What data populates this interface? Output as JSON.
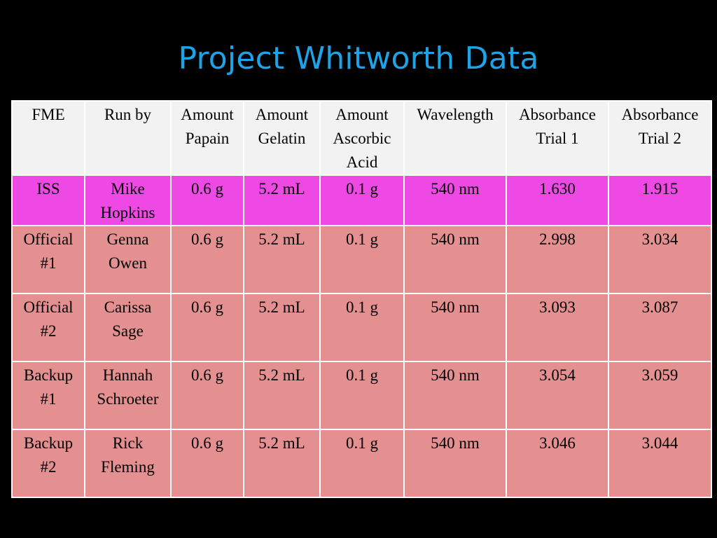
{
  "slide": {
    "title": "Project Whitworth Data"
  },
  "table": {
    "columns": [
      "FME",
      "Run by",
      "Amount Papain",
      "Amount Gelatin",
      "Amount Ascorbic Acid",
      "Wavelength",
      "Absorbance Trial 1",
      "Absorbance Trial 2"
    ],
    "rows": [
      [
        "ISS",
        "Mike Hopkins",
        "0.6 g",
        "5.2 mL",
        "0.1 g",
        "540 nm",
        "1.630",
        "1.915"
      ],
      [
        "Official #1",
        "Genna Owen",
        "0.6 g",
        "5.2 mL",
        "0.1 g",
        "540 nm",
        "2.998",
        "3.034"
      ],
      [
        "Official #2",
        "Carissa Sage",
        "0.6 g",
        "5.2 mL",
        "0.1 g",
        "540 nm",
        "3.093",
        "3.087"
      ],
      [
        "Backup #1",
        "Hannah Schroeter",
        "0.6 g",
        "5.2 mL",
        "0.1 g",
        "540 nm",
        "3.054",
        "3.059"
      ],
      [
        "Backup #2",
        "Rick Fleming",
        "0.6 g",
        "5.2 mL",
        "0.1 g",
        "540 nm",
        "3.046",
        "3.044"
      ]
    ],
    "colors": {
      "header_bg": "#f2f2f2",
      "highlight_row_bg": "#ee48e5",
      "row_bg": "#e49090",
      "title_color": "#1fa3e8"
    }
  }
}
